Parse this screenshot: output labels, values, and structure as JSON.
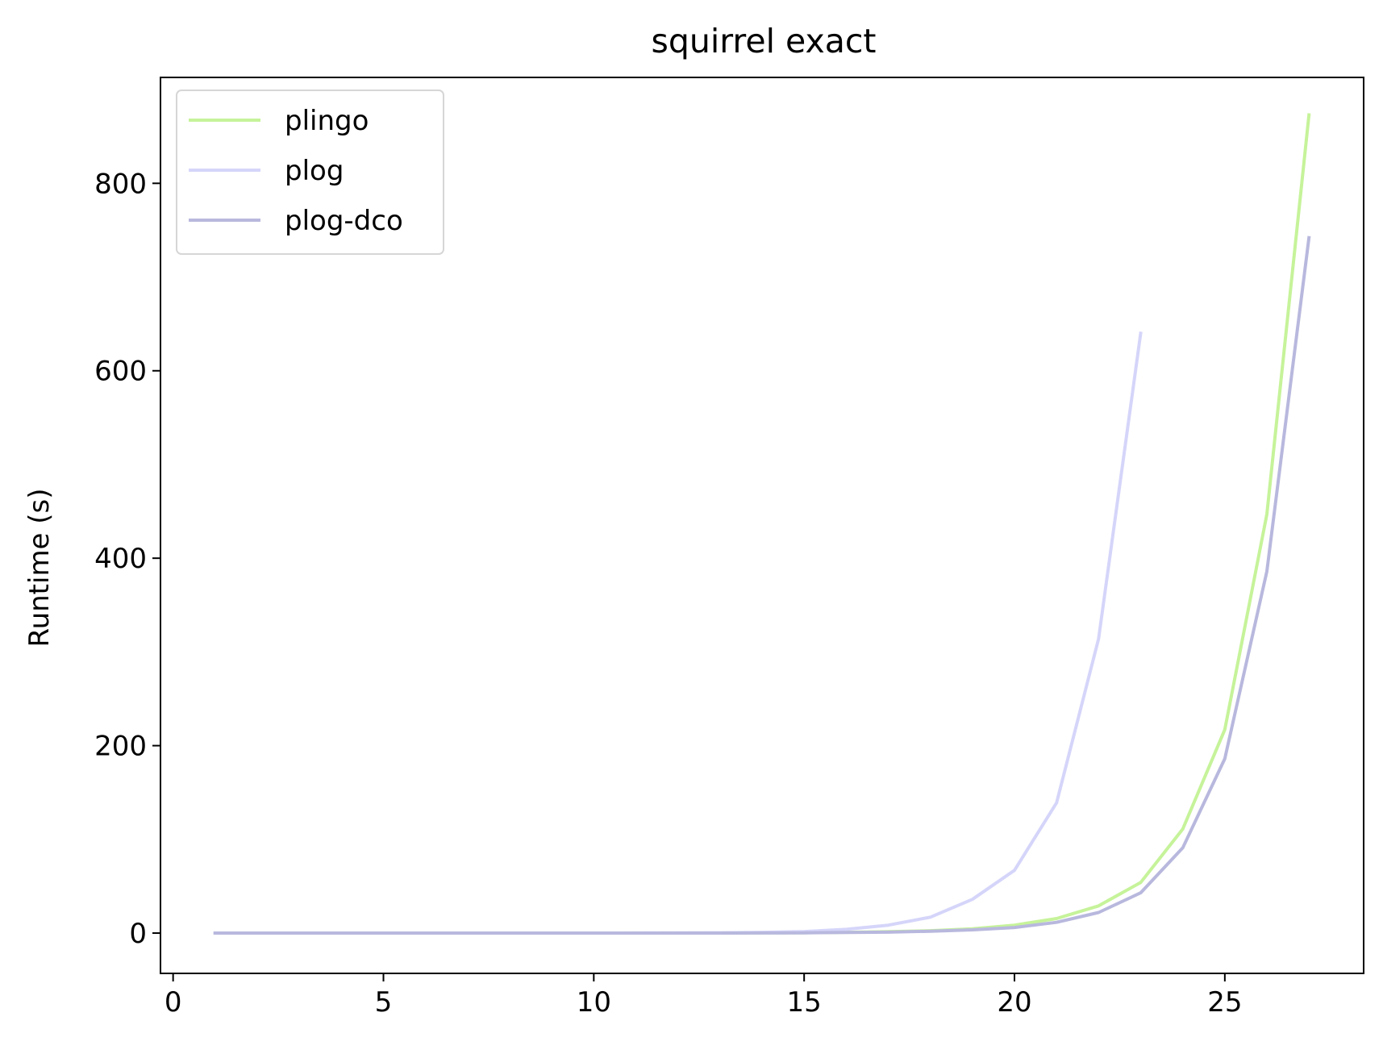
{
  "chart_data": {
    "type": "line",
    "title": "squirrel exact",
    "xlabel": "",
    "ylabel": "Runtime (s)",
    "xlim": [
      -0.3,
      28.3
    ],
    "ylim": [
      -43,
      913
    ],
    "xticks": [
      0,
      5,
      10,
      15,
      20,
      25
    ],
    "yticks": [
      0,
      200,
      400,
      600,
      800
    ],
    "grid": false,
    "legend_position": "top-left",
    "series": [
      {
        "name": "plingo",
        "color": "#c6f39a",
        "x": [
          1,
          2,
          3,
          4,
          5,
          6,
          7,
          8,
          9,
          10,
          11,
          12,
          13,
          14,
          15,
          16,
          17,
          18,
          19,
          20,
          21,
          22,
          23,
          24,
          25,
          26,
          27
        ],
        "values": [
          0,
          0,
          0,
          0,
          0,
          0,
          0,
          0,
          0,
          0,
          0,
          0,
          0,
          0.2,
          0.4,
          0.8,
          1.5,
          2.5,
          4.5,
          8.5,
          15.5,
          29,
          54,
          111,
          217,
          447,
          873
        ]
      },
      {
        "name": "plog",
        "color": "#d5d5fa",
        "x": [
          1,
          2,
          3,
          4,
          5,
          6,
          7,
          8,
          9,
          10,
          11,
          12,
          13,
          14,
          15,
          16,
          17,
          18,
          19,
          20,
          21,
          22,
          23
        ],
        "values": [
          0,
          0,
          0,
          0,
          0,
          0,
          0,
          0,
          0,
          0,
          0.1,
          0.2,
          0.4,
          0.8,
          1.7,
          4,
          8.5,
          17,
          36,
          67,
          139,
          314,
          640
        ]
      },
      {
        "name": "plog-dco",
        "color": "#b8b8de",
        "x": [
          1,
          2,
          3,
          4,
          5,
          6,
          7,
          8,
          9,
          10,
          11,
          12,
          13,
          14,
          15,
          16,
          17,
          18,
          19,
          20,
          21,
          22,
          23,
          24,
          25,
          26,
          27
        ],
        "values": [
          0,
          0,
          0,
          0,
          0,
          0,
          0,
          0,
          0,
          0,
          0,
          0,
          0,
          0.1,
          0.3,
          0.6,
          1,
          2,
          3.5,
          6,
          11.5,
          22,
          43,
          91,
          186,
          386,
          742
        ]
      }
    ]
  }
}
